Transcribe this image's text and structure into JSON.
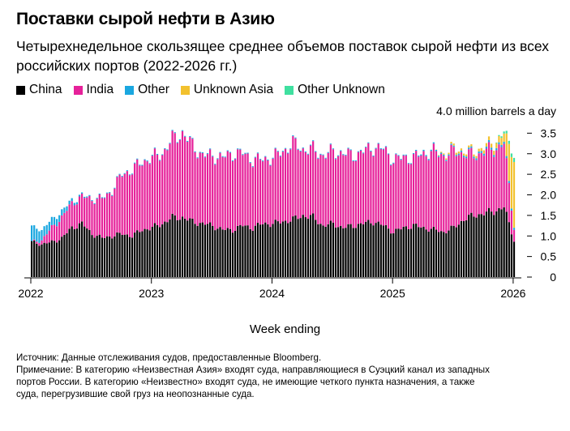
{
  "title": "Поставки сырой нефти в Азию",
  "subtitle": "Четырехнедельное скользящее среднее объемов поставок сырой нефти из всех российских портов (2022-2026 гг.)",
  "legend": [
    {
      "label": "China",
      "color": "#000000"
    },
    {
      "label": "India",
      "color": "#e6219a"
    },
    {
      "label": "Other",
      "color": "#1aa7e0"
    },
    {
      "label": "Unknown Asia",
      "color": "#f2c12e"
    },
    {
      "label": "Other Unknown",
      "color": "#3fe0a0"
    }
  ],
  "source": "Источник: Данные отслеживания судов, предоставленные Bloomberg.",
  "note": "Примечание: В категорию «Неизвестная Азия» входят суда, направляющиеся в Суэцкий канал из западных\nпортов России. В категорию «Неизвестно» входят суда, не имеющие четкого пункта назначения, а также\nсуда, перегрузившие свой груз на неопознанные суда.",
  "chart_data": {
    "type": "bar",
    "stacked": true,
    "xlabel": "Week ending",
    "ylabel": "",
    "unit_label": "4.0 million barrels a day",
    "ylim": [
      0,
      4.0
    ],
    "yticks": [
      "0",
      "0.5",
      "1.0",
      "1.5",
      "2.0",
      "2.5",
      "3.0",
      "3.5"
    ],
    "xticks": [
      "2022",
      "2023",
      "2024",
      "2025",
      "2026"
    ],
    "x": [
      "2022-01",
      "2022-02",
      "2022-03",
      "2022-04",
      "2022-05",
      "2022-06",
      "2022-07",
      "2022-08",
      "2022-09",
      "2022-10",
      "2022-11",
      "2022-12",
      "2023-01",
      "2023-02",
      "2023-03",
      "2023-04",
      "2023-05",
      "2023-06",
      "2023-07",
      "2023-08",
      "2023-09",
      "2023-10",
      "2023-11",
      "2023-12",
      "2024-01",
      "2024-02",
      "2024-03",
      "2024-04",
      "2024-05",
      "2024-06",
      "2024-07",
      "2024-08",
      "2024-09",
      "2024-10",
      "2024-11",
      "2024-12",
      "2025-01",
      "2025-02",
      "2025-03",
      "2025-04",
      "2025-05",
      "2025-06",
      "2025-07",
      "2025-08",
      "2025-09",
      "2025-10",
      "2025-11",
      "2025-12",
      "2026-01"
    ],
    "series": [
      {
        "name": "China",
        "color": "#000000",
        "values": [
          0.85,
          0.8,
          0.85,
          0.95,
          1.2,
          1.3,
          1.05,
          0.95,
          1.0,
          1.05,
          1.0,
          1.15,
          1.2,
          1.3,
          1.45,
          1.45,
          1.35,
          1.3,
          1.25,
          1.15,
          1.15,
          1.25,
          1.2,
          1.3,
          1.3,
          1.35,
          1.4,
          1.5,
          1.45,
          1.25,
          1.3,
          1.2,
          1.25,
          1.3,
          1.35,
          1.25,
          1.1,
          1.2,
          1.25,
          1.2,
          1.15,
          1.1,
          1.2,
          1.4,
          1.5,
          1.55,
          1.6,
          1.7,
          0.9
        ]
      },
      {
        "name": "India",
        "color": "#e6219a",
        "values": [
          0.0,
          0.1,
          0.35,
          0.5,
          0.6,
          0.65,
          0.85,
          0.95,
          1.1,
          1.45,
          1.6,
          1.65,
          1.7,
          1.7,
          1.9,
          2.05,
          1.85,
          1.65,
          1.7,
          1.75,
          1.85,
          1.75,
          1.65,
          1.55,
          1.6,
          1.7,
          1.85,
          1.6,
          1.65,
          1.7,
          1.75,
          1.8,
          1.7,
          1.75,
          1.8,
          1.85,
          1.75,
          1.7,
          1.65,
          1.8,
          1.9,
          1.85,
          1.85,
          1.6,
          1.45,
          1.5,
          1.5,
          1.55,
          0.3
        ]
      },
      {
        "name": "Other",
        "color": "#1aa7e0",
        "values": [
          0.38,
          0.25,
          0.2,
          0.15,
          0.07,
          0.03,
          0.02,
          0.02,
          0.02,
          0.02,
          0.02,
          0.02,
          0.02,
          0.02,
          0.02,
          0.02,
          0.02,
          0.02,
          0.02,
          0.02,
          0.02,
          0.02,
          0.02,
          0.02,
          0.02,
          0.02,
          0.02,
          0.02,
          0.02,
          0.02,
          0.02,
          0.02,
          0.02,
          0.02,
          0.02,
          0.02,
          0.02,
          0.02,
          0.02,
          0.03,
          0.03,
          0.03,
          0.03,
          0.04,
          0.04,
          0.05,
          0.05,
          0.05,
          0.05
        ]
      },
      {
        "name": "Unknown Asia",
        "color": "#f2c12e",
        "values": [
          0,
          0,
          0,
          0,
          0,
          0,
          0,
          0,
          0,
          0,
          0,
          0,
          0,
          0,
          0,
          0,
          0,
          0,
          0,
          0,
          0,
          0,
          0,
          0,
          0,
          0,
          0,
          0,
          0,
          0,
          0,
          0,
          0,
          0,
          0,
          0,
          0,
          0,
          0,
          0,
          0,
          0.03,
          0.05,
          0.05,
          0.05,
          0.08,
          0.1,
          0.2,
          1.6
        ]
      },
      {
        "name": "Other Unknown",
        "color": "#3fe0a0",
        "values": [
          0,
          0,
          0,
          0,
          0,
          0,
          0,
          0,
          0,
          0,
          0,
          0,
          0,
          0,
          0,
          0,
          0,
          0,
          0,
          0,
          0,
          0,
          0,
          0,
          0,
          0,
          0,
          0,
          0,
          0,
          0,
          0,
          0,
          0,
          0,
          0,
          0,
          0,
          0,
          0,
          0,
          0,
          0,
          0,
          0,
          0,
          0,
          0.05,
          0.1
        ]
      }
    ]
  }
}
